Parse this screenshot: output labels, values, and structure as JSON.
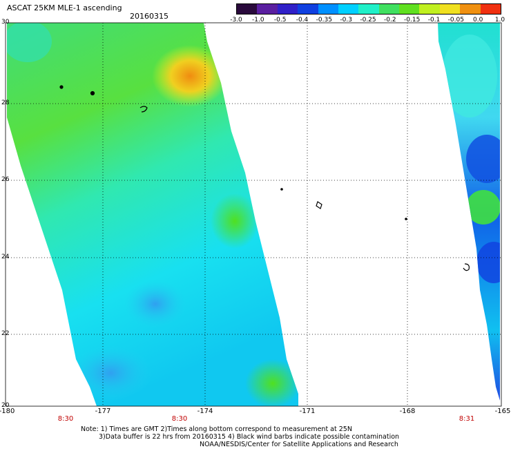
{
  "header": {
    "title": "ASCAT 25KM MLE-1 ascending",
    "date": "20160315"
  },
  "colorbar": {
    "labels": [
      "-3.0",
      "-1.0",
      "-0.5",
      "-0.4",
      "-0.35",
      "-0.3",
      "-0.25",
      "-0.2",
      "-0.15",
      "-0.1",
      "-0.05",
      "0.0",
      "1.0"
    ],
    "colors": [
      "#2a0a3c",
      "#5a1fa0",
      "#3020c8",
      "#1040e0",
      "#0090ff",
      "#00d0ff",
      "#20f0c8",
      "#40e060",
      "#60e020",
      "#c0f020",
      "#f0e020",
      "#f09010",
      "#f03010"
    ]
  },
  "axes": {
    "lat_labels": [
      "30",
      "28",
      "26",
      "24",
      "22",
      "20"
    ],
    "lon_labels": [
      "-180",
      "-177",
      "-174",
      "-171",
      "-168",
      "-165"
    ]
  },
  "time_labels": [
    "8:30",
    "8:30",
    "8:31"
  ],
  "notes": {
    "line1": "Note: 1) Times are GMT  2)Times along bottom correspond to measurement at 25N",
    "line2": "3)Data buffer is 22 hrs from 20160315  4) Black wind barbs indicate possible contamination",
    "line3": "NOAA/NESDIS/Center for Satellite Applications and Research"
  }
}
